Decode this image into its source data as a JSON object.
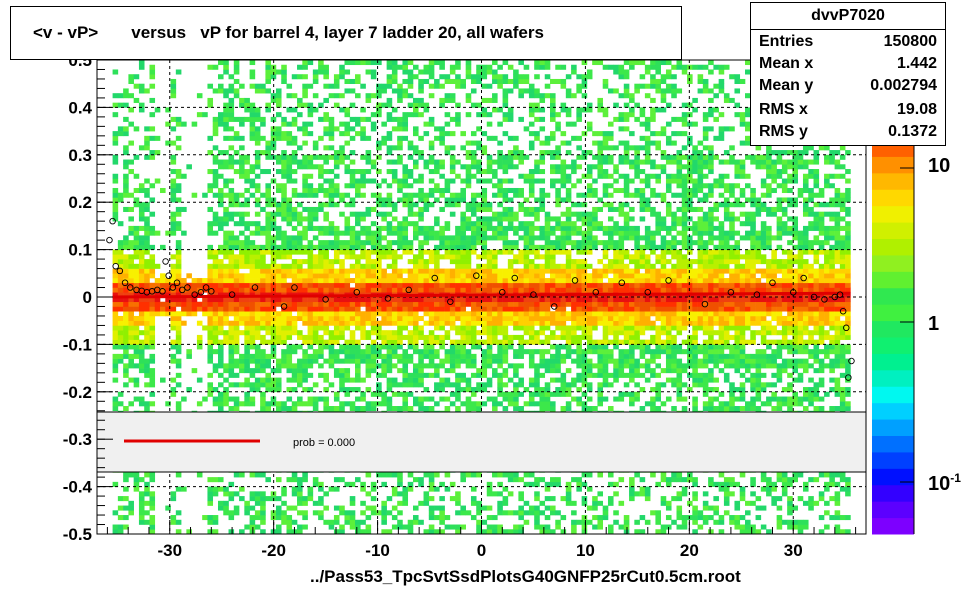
{
  "title": "<v - vP>       versus   vP for barrel 4, layer 7 ladder 20, all wafers",
  "stats": {
    "name": "dvvP7020",
    "rows": [
      {
        "label": "Entries",
        "value": "150800"
      },
      {
        "label": "Mean x",
        "value": "1.442"
      },
      {
        "label": "Mean y",
        "value": "0.002794"
      },
      {
        "label": "RMS x",
        "value": "19.08"
      },
      {
        "label": "RMS y",
        "value": "0.1372"
      }
    ]
  },
  "legend": {
    "label": "prob = 0.000",
    "line_color": "#e00000"
  },
  "footer": "../Pass53_TpcSvtSsdPlotsG40GNFP25rCut0.5cm.root",
  "colors": {
    "fit_line": "#e00000",
    "frame": "#000000"
  },
  "chart_data": {
    "type": "heatmap",
    "title": "<v - vP>       versus   vP for barrel 4, layer 7 ladder 20, all wafers",
    "xlim": [
      -37,
      37
    ],
    "ylim": [
      -0.5,
      0.5
    ],
    "x_ticks": [
      -30,
      -20,
      -10,
      0,
      10,
      20,
      30
    ],
    "y_ticks": [
      -0.5,
      -0.4,
      -0.3,
      -0.2,
      -0.1,
      0,
      0.1,
      0.2,
      0.3,
      0.4,
      0.5
    ],
    "y_tick_labels": [
      "-0.5",
      "-0.4",
      "-0.3",
      "-0.2",
      "-0.1",
      "0",
      "0.1",
      "0.2",
      "0.3",
      "0.4",
      "0.5"
    ],
    "x_tick_labels": [
      "-30",
      "-20",
      "-10",
      "0",
      "10",
      "20",
      "30"
    ],
    "grid": true,
    "z_scale": "log",
    "z_tick_labels": [
      "10",
      "1",
      "10^-1"
    ],
    "data_x_range": [
      -35.5,
      35.5
    ],
    "gap_ranges": [
      [
        -31.5,
        -29.7
      ],
      [
        -29.1,
        -26.6
      ]
    ],
    "profile_points": [
      {
        "x": -35.8,
        "y": 0.12
      },
      {
        "x": -35.5,
        "y": 0.16
      },
      {
        "x": -35.2,
        "y": 0.065
      },
      {
        "x": -34.8,
        "y": 0.055
      },
      {
        "x": -34.3,
        "y": 0.03
      },
      {
        "x": -33.8,
        "y": 0.02
      },
      {
        "x": -33.2,
        "y": 0.015
      },
      {
        "x": -32.7,
        "y": 0.013
      },
      {
        "x": -32.2,
        "y": 0.01
      },
      {
        "x": -31.7,
        "y": 0.012
      },
      {
        "x": -31.2,
        "y": 0.015
      },
      {
        "x": -30.7,
        "y": 0.012
      },
      {
        "x": -30.4,
        "y": 0.075
      },
      {
        "x": -30.1,
        "y": 0.045
      },
      {
        "x": -29.7,
        "y": 0.02
      },
      {
        "x": -29.3,
        "y": 0.03
      },
      {
        "x": -28.8,
        "y": 0.015
      },
      {
        "x": -28.3,
        "y": 0.02
      },
      {
        "x": -27.6,
        "y": 0.005
      },
      {
        "x": -27.0,
        "y": 0.01
      },
      {
        "x": -26.5,
        "y": 0.02
      },
      {
        "x": -26.0,
        "y": 0.012
      },
      {
        "x": -24.0,
        "y": 0.005
      },
      {
        "x": -21.8,
        "y": 0.02
      },
      {
        "x": -19.0,
        "y": -0.02
      },
      {
        "x": -18.0,
        "y": 0.02
      },
      {
        "x": -15.0,
        "y": -0.005
      },
      {
        "x": -12.0,
        "y": 0.01
      },
      {
        "x": -9.0,
        "y": -0.003
      },
      {
        "x": -7.0,
        "y": 0.015
      },
      {
        "x": -4.5,
        "y": 0.04
      },
      {
        "x": -3.0,
        "y": -0.01
      },
      {
        "x": -0.5,
        "y": 0.045
      },
      {
        "x": 2.0,
        "y": 0.01
      },
      {
        "x": 3.2,
        "y": 0.04
      },
      {
        "x": 5.0,
        "y": 0.005
      },
      {
        "x": 7.0,
        "y": -0.02
      },
      {
        "x": 9.0,
        "y": 0.035
      },
      {
        "x": 11.0,
        "y": 0.01
      },
      {
        "x": 13.5,
        "y": 0.03
      },
      {
        "x": 16.0,
        "y": 0.01
      },
      {
        "x": 18.0,
        "y": 0.035
      },
      {
        "x": 21.5,
        "y": -0.015
      },
      {
        "x": 24.0,
        "y": 0.01
      },
      {
        "x": 26.5,
        "y": 0.005
      },
      {
        "x": 28.0,
        "y": 0.03
      },
      {
        "x": 30.0,
        "y": 0.01
      },
      {
        "x": 31.0,
        "y": 0.04
      },
      {
        "x": 32.0,
        "y": 0.0
      },
      {
        "x": 33.0,
        "y": -0.005
      },
      {
        "x": 34.0,
        "y": 0.0
      },
      {
        "x": 34.5,
        "y": 0.005
      },
      {
        "x": 34.8,
        "y": -0.03
      },
      {
        "x": 35.1,
        "y": -0.065
      },
      {
        "x": 35.3,
        "y": -0.17
      },
      {
        "x": 35.6,
        "y": -0.135
      }
    ],
    "fit_line": {
      "x": [
        -35.5,
        35.5
      ],
      "y": [
        0.0,
        0.008
      ]
    }
  }
}
